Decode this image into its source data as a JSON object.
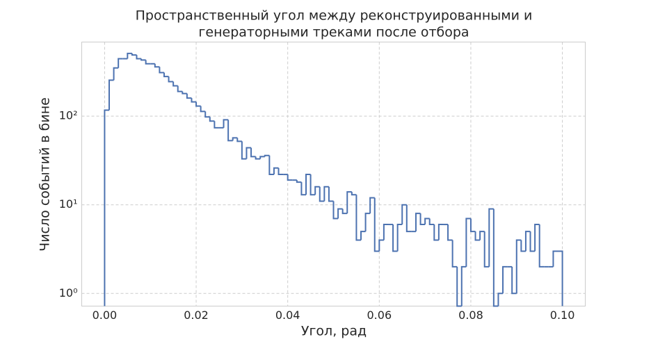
{
  "chart_data": {
    "type": "histogram",
    "title": [
      "Пространственный угол между реконструированными и",
      "генераторными треками после отбора"
    ],
    "x_label": "Угол, рад",
    "y_label": "Число событий в бине",
    "color": "#4c72b0",
    "log_y": true,
    "grid": true,
    "xlim": [
      -0.005,
      0.105
    ],
    "ylim": [
      0.72,
      686
    ],
    "xticks": [
      {
        "value": 0,
        "label": "0.00"
      },
      {
        "value": 0.02,
        "label": "0.02"
      },
      {
        "value": 0.04,
        "label": "0.04"
      },
      {
        "value": 0.06,
        "label": "0.06"
      },
      {
        "value": 0.08,
        "label": "0.08"
      },
      {
        "value": 0.1,
        "label": "0.10"
      }
    ],
    "yticks": [
      {
        "value": 1,
        "label": "10⁰"
      },
      {
        "value": 10,
        "label": "10¹"
      },
      {
        "value": 100,
        "label": "10²"
      }
    ],
    "bins": [
      0,
      0.001,
      0.002,
      0.003,
      0.004,
      0.005,
      0.006,
      0.007,
      0.008,
      0.009,
      0.01,
      0.011,
      0.012,
      0.013,
      0.014,
      0.015,
      0.016,
      0.017,
      0.018,
      0.019,
      0.02,
      0.021,
      0.022,
      0.023,
      0.024,
      0.025,
      0.026,
      0.027,
      0.028,
      0.029,
      0.03,
      0.031,
      0.032,
      0.033,
      0.034,
      0.035,
      0.036,
      0.037,
      0.038,
      0.039,
      0.04,
      0.041,
      0.042,
      0.043,
      0.044,
      0.045,
      0.046,
      0.047,
      0.048,
      0.049,
      0.05,
      0.051,
      0.052,
      0.053,
      0.054,
      0.055,
      0.056,
      0.057,
      0.058,
      0.059,
      0.06,
      0.061,
      0.062,
      0.063,
      0.064,
      0.065,
      0.066,
      0.067,
      0.068,
      0.069,
      0.07,
      0.071,
      0.072,
      0.073,
      0.074,
      0.075,
      0.076,
      0.077,
      0.078,
      0.079,
      0.08,
      0.081,
      0.082,
      0.083,
      0.084,
      0.085,
      0.086,
      0.087,
      0.088,
      0.089,
      0.09,
      0.091,
      0.092,
      0.093,
      0.094,
      0.095,
      0.096,
      0.097,
      0.098,
      0.099,
      0.1
    ],
    "values": [
      117,
      255,
      350,
      445,
      445,
      510,
      490,
      445,
      430,
      390,
      390,
      360,
      310,
      280,
      245,
      220,
      190,
      180,
      160,
      145,
      130,
      113,
      98,
      88,
      74,
      74,
      91,
      53,
      57,
      52,
      33,
      44,
      35,
      33,
      35,
      36,
      22,
      26,
      22,
      22,
      19,
      19,
      18,
      13,
      22,
      13,
      16,
      11,
      16,
      11,
      7,
      9,
      8,
      14,
      13,
      4,
      5,
      8,
      12,
      3,
      4,
      6,
      6,
      3,
      6,
      10,
      5,
      5,
      8,
      6,
      7,
      6,
      4,
      6,
      6,
      4,
      2,
      0,
      2,
      7,
      5,
      4,
      5,
      2,
      9,
      0,
      1,
      2,
      2,
      1,
      4,
      3,
      5,
      3,
      6,
      2,
      2,
      2,
      3,
      3
    ]
  }
}
